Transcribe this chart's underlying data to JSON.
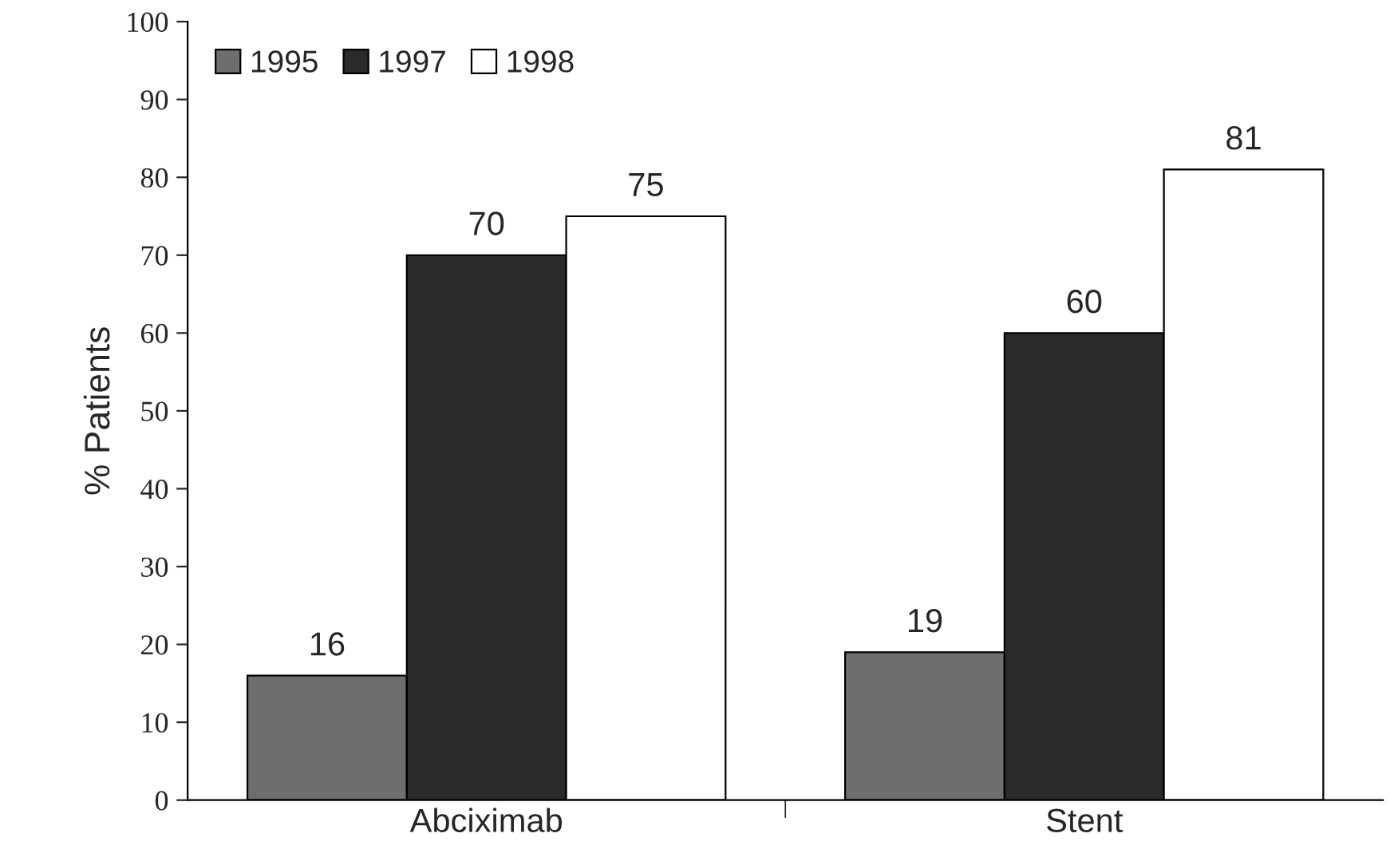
{
  "chart_data": {
    "type": "bar",
    "ylabel": "% Patients",
    "categories": [
      "Abciximab",
      "Stent"
    ],
    "series": [
      {
        "name": "1995",
        "color": "#6e6e6e",
        "values": [
          16,
          19
        ]
      },
      {
        "name": "1997",
        "color": "#2a2a2a",
        "values": [
          70,
          60
        ]
      },
      {
        "name": "1998",
        "color": "#ffffff",
        "values": [
          75,
          81
        ]
      }
    ],
    "ylim": [
      0,
      100
    ],
    "yticks": [
      0,
      10,
      20,
      30,
      40,
      50,
      60,
      70,
      80,
      90,
      100
    ],
    "data_labels": true,
    "grid": false,
    "legend": "top left"
  }
}
